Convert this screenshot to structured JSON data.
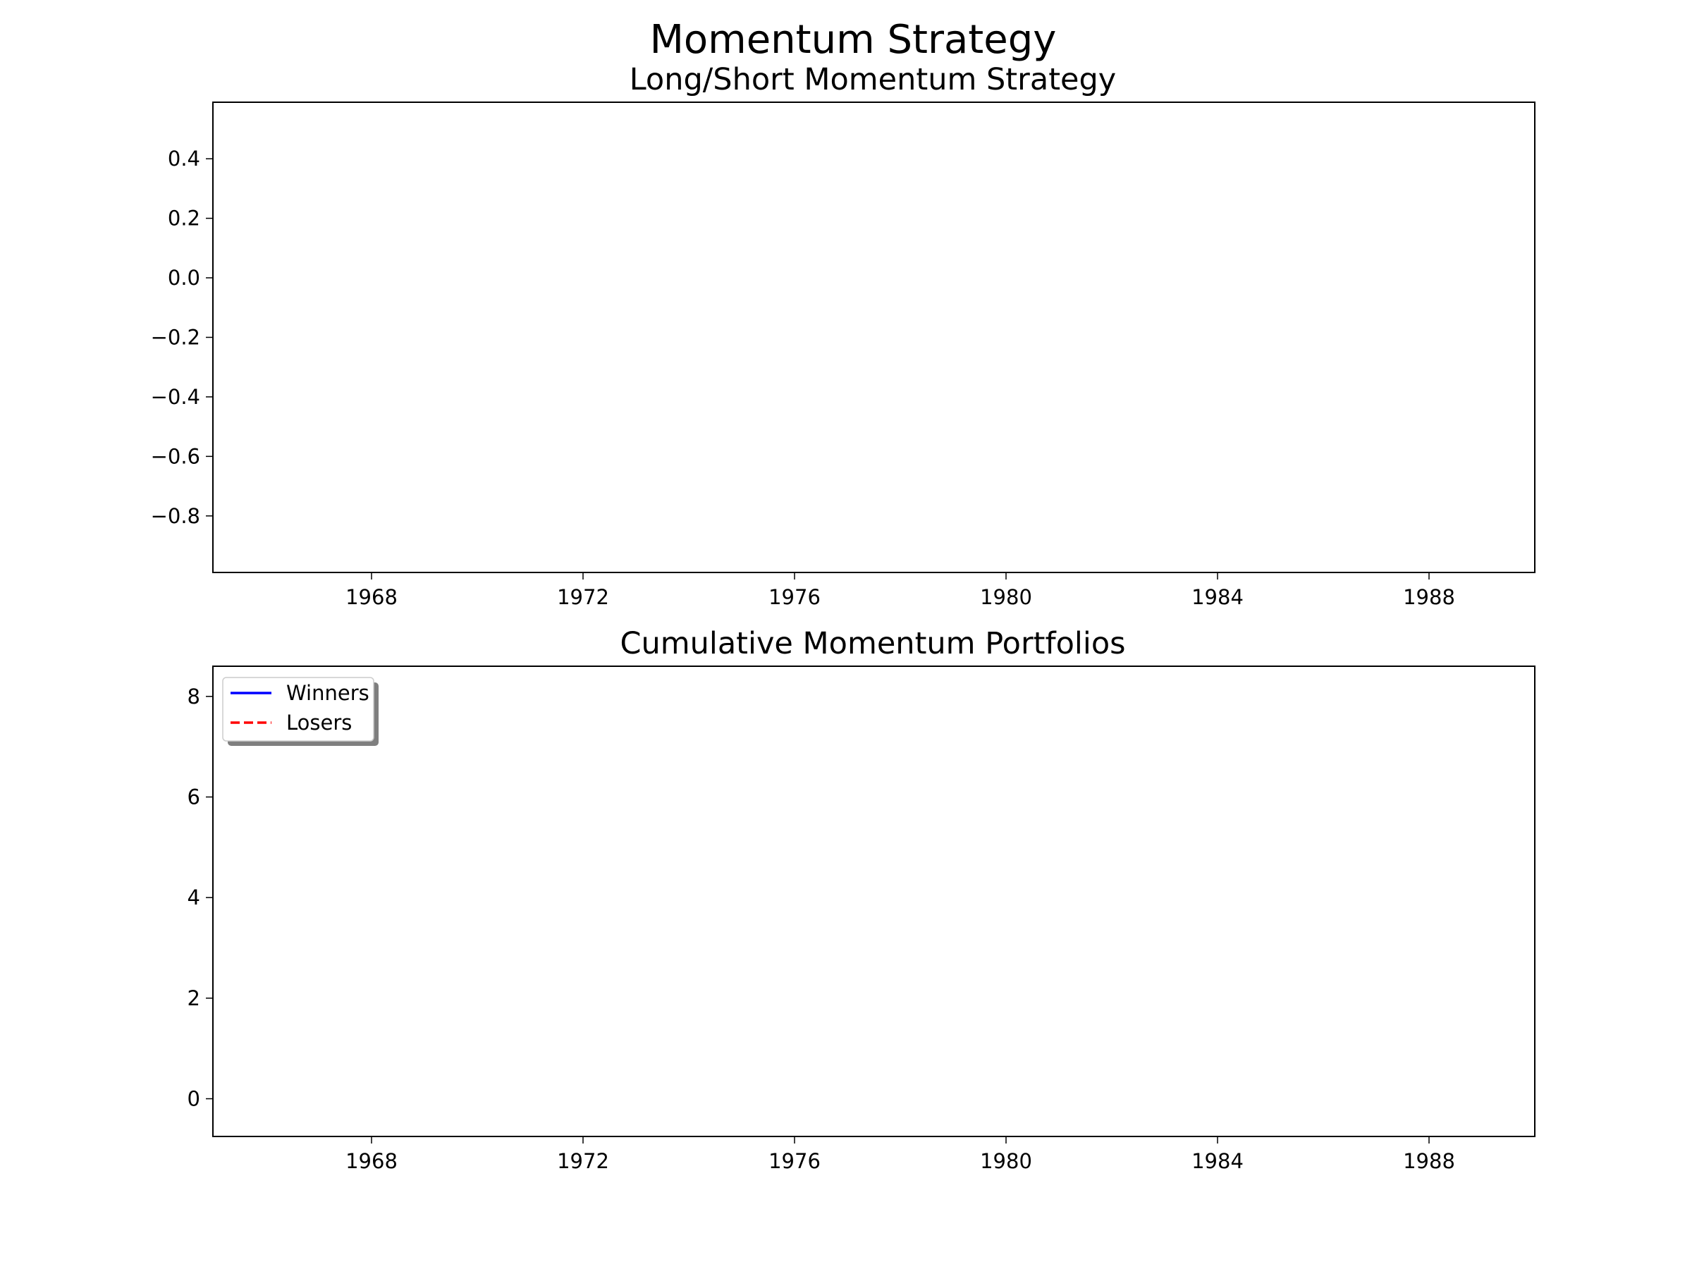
{
  "title": "Momentum Strategy",
  "chart_data": [
    {
      "type": "line",
      "title": "Long/Short Momentum Strategy",
      "xlabel": "",
      "ylabel": "",
      "x_axis": "date",
      "xlim": [
        "1965-01-01",
        "1990-01-01"
      ],
      "ylim": [
        -0.99,
        0.59
      ],
      "x_ticks": [
        "1968",
        "1972",
        "1976",
        "1980",
        "1984",
        "1988"
      ],
      "y_ticks": [
        "0.4",
        "0.2",
        "0.0",
        "−0.2",
        "−0.4",
        "−0.6",
        "−0.8"
      ],
      "y_tick_values": [
        0.4,
        0.2,
        0.0,
        -0.2,
        -0.4,
        -0.6,
        -0.8
      ],
      "grid": false,
      "series": []
    },
    {
      "type": "line",
      "title": "Cumulative Momentum Portfolios",
      "xlabel": "",
      "ylabel": "",
      "x_axis": "date",
      "xlim": [
        "1965-01-01",
        "1990-01-01"
      ],
      "ylim": [
        -0.75,
        8.6
      ],
      "x_ticks": [
        "1968",
        "1972",
        "1976",
        "1980",
        "1984",
        "1988"
      ],
      "y_ticks": [
        "8",
        "6",
        "4",
        "2",
        "0"
      ],
      "y_tick_values": [
        8,
        6,
        4,
        2,
        0
      ],
      "grid": false,
      "legend": "upper left",
      "series": [
        {
          "name": "Winners",
          "color": "#0000ff",
          "style": "solid",
          "values": []
        },
        {
          "name": "Losers",
          "color": "#ff0000",
          "style": "dashed",
          "values": []
        }
      ]
    }
  ]
}
